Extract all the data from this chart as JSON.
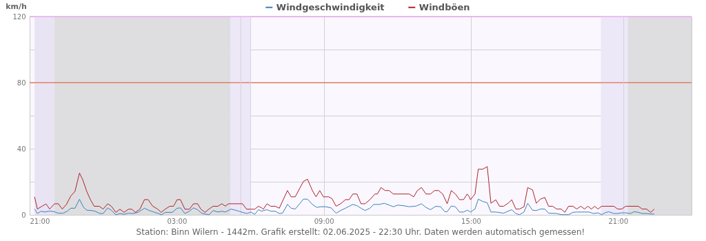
{
  "chart_data": {
    "type": "line",
    "ylabel": "km/h",
    "xlim": [
      "2025-06-01T21:00",
      "2025-06-03T00:00"
    ],
    "xticks": [
      {
        "value": "2025-06-01T21:00",
        "label": "21:00"
      },
      {
        "value": "2025-06-02T03:00",
        "label": "03:00"
      },
      {
        "value": "2025-06-02T09:00",
        "label": "09:00"
      },
      {
        "value": "2025-06-02T15:00",
        "label": "15:00"
      },
      {
        "value": "2025-06-02T21:00",
        "label": "21:00"
      }
    ],
    "ylim": [
      0,
      120
    ],
    "yticks": [
      0,
      {
        "value": 20,
        "label": null
      },
      40,
      {
        "value": 60,
        "label": null
      },
      80,
      {
        "value": 100,
        "label": null
      },
      120
    ],
    "grid": true,
    "legend": "top",
    "series": [
      {
        "name": "Windgeschwindigkeit",
        "color": "#3a7fc0",
        "x": [
          "2025-06-01T21:12",
          "2025-06-01T21:19",
          "2025-06-01T21:28",
          "2025-06-01T21:37",
          "2025-06-01T21:47",
          "2025-06-01T21:59",
          "2025-06-01T22:10",
          "2025-06-01T22:22",
          "2025-06-01T22:32",
          "2025-06-01T22:41",
          "2025-06-01T22:51",
          "2025-06-01T23:02",
          "2025-06-01T23:12",
          "2025-06-01T23:20",
          "2025-06-01T23:32",
          "2025-06-01T23:40",
          "2025-06-01T23:52",
          "2025-06-02T00:00",
          "2025-06-02T00:11",
          "2025-06-02T00:20",
          "2025-06-02T00:31",
          "2025-06-02T00:41",
          "2025-06-02T00:51",
          "2025-06-02T01:02",
          "2025-06-02T01:13",
          "2025-06-02T01:25",
          "2025-06-02T01:41",
          "2025-06-02T01:53",
          "2025-06-02T02:04",
          "2025-06-02T02:15",
          "2025-06-02T02:23",
          "2025-06-02T02:32",
          "2025-06-02T02:49",
          "2025-06-02T03:01",
          "2025-06-02T03:09",
          "2025-06-02T03:20",
          "2025-06-02T03:31",
          "2025-06-02T03:41",
          "2025-06-02T03:51",
          "2025-06-02T04:02",
          "2025-06-02T04:14",
          "2025-06-02T04:19",
          "2025-06-02T04:29",
          "2025-06-02T04:41",
          "2025-06-02T04:50",
          "2025-06-02T04:59",
          "2025-06-02T05:13",
          "2025-06-02T05:24",
          "2025-06-02T05:32",
          "2025-06-02T05:41",
          "2025-06-02T05:52",
          "2025-06-02T06:01",
          "2025-06-02T06:11",
          "2025-06-02T06:20",
          "2025-06-02T06:28",
          "2025-06-02T06:32",
          "2025-06-02T06:41",
          "2025-06-02T06:50",
          "2025-06-02T07:01",
          "2025-06-02T07:11",
          "2025-06-02T07:19",
          "2025-06-02T07:31",
          "2025-06-02T07:40",
          "2025-06-02T07:50",
          "2025-06-02T08:02",
          "2025-06-02T08:10",
          "2025-06-02T08:20",
          "2025-06-02T08:32",
          "2025-06-02T08:43",
          "2025-06-02T08:52",
          "2025-06-02T09:04",
          "2025-06-02T09:18",
          "2025-06-02T09:30",
          "2025-06-02T09:41",
          "2025-06-02T09:53",
          "2025-06-02T10:11",
          "2025-06-02T10:21",
          "2025-06-02T10:31",
          "2025-06-02T10:41",
          "2025-06-02T10:53",
          "2025-06-02T11:02",
          "2025-06-02T11:16",
          "2025-06-02T11:28",
          "2025-06-02T11:40",
          "2025-06-02T11:50",
          "2025-06-02T12:01",
          "2025-06-02T12:13",
          "2025-06-02T12:29",
          "2025-06-02T12:46",
          "2025-06-02T12:59",
          "2025-06-02T13:10",
          "2025-06-02T13:21",
          "2025-06-02T13:34",
          "2025-06-02T13:46",
          "2025-06-02T13:56",
          "2025-06-02T14:02",
          "2025-06-02T14:12",
          "2025-06-02T14:22",
          "2025-06-02T14:32",
          "2025-06-02T14:42",
          "2025-06-02T14:51",
          "2025-06-02T14:56",
          "2025-06-02T14:59",
          "2025-06-02T15:10",
          "2025-06-02T15:18",
          "2025-06-02T15:29",
          "2025-06-02T15:40",
          "2025-06-02T15:49",
          "2025-06-02T16:01",
          "2025-06-02T16:20",
          "2025-06-02T16:31",
          "2025-06-02T16:40",
          "2025-06-02T16:50",
          "2025-06-02T16:59",
          "2025-06-02T17:10",
          "2025-06-02T17:19",
          "2025-06-02T17:31",
          "2025-06-02T17:40",
          "2025-06-02T17:50",
          "2025-06-02T18:01",
          "2025-06-02T18:10",
          "2025-06-02T18:30",
          "2025-06-02T18:41",
          "2025-06-02T18:59",
          "2025-06-02T19:10",
          "2025-06-02T19:19",
          "2025-06-02T19:49",
          "2025-06-02T20:00",
          "2025-06-02T20:11",
          "2025-06-02T20:20",
          "2025-06-02T20:28",
          "2025-06-02T20:37",
          "2025-06-02T20:50",
          "2025-06-02T20:59",
          "2025-06-02T21:09",
          "2025-06-02T21:19",
          "2025-06-02T21:30",
          "2025-06-02T21:40",
          "2025-06-02T21:50",
          "2025-06-02T21:59",
          "2025-06-02T22:10",
          "2025-06-02T22:20",
          "2025-06-02T22:29"
        ],
        "values": [
          3.5,
          0.8,
          2.2,
          1.7,
          2.2,
          2.0,
          1.0,
          1.0,
          2.2,
          4.0,
          4.0,
          9.4,
          4.5,
          2.8,
          2.6,
          2.2,
          0.8,
          0.8,
          4.2,
          2.8,
          0.0,
          0.8,
          0.3,
          1.0,
          0.8,
          1.5,
          4.0,
          2.6,
          1.7,
          0.8,
          0.0,
          1.5,
          1.5,
          4.0,
          4.2,
          0.8,
          2.2,
          4.2,
          3.1,
          0.8,
          0.3,
          0.0,
          2.6,
          1.7,
          2.2,
          1.7,
          3.5,
          2.8,
          2.2,
          1.5,
          0.8,
          1.7,
          0.3,
          3.1,
          2.2,
          2.6,
          3.1,
          2.2,
          2.2,
          0.8,
          1.0,
          6.3,
          4.0,
          3.5,
          7.0,
          9.5,
          9.5,
          6.3,
          4.5,
          4.9,
          4.9,
          4.2,
          1.0,
          2.6,
          4.0,
          6.3,
          5.6,
          4.0,
          2.6,
          4.0,
          6.3,
          6.3,
          7.0,
          5.9,
          4.9,
          5.9,
          5.6,
          4.9,
          5.3,
          6.7,
          4.5,
          3.1,
          5.2,
          4.9,
          1.9,
          1.9,
          5.3,
          4.9,
          1.7,
          1.7,
          2.8,
          2.2,
          1.7,
          3.5,
          9.5,
          8.1,
          7.3,
          1.7,
          1.7,
          1.0,
          2.2,
          3.1,
          0.8,
          0.1,
          1.7,
          7.0,
          2.8,
          2.6,
          3.5,
          3.5,
          1.0,
          0.8,
          0.1,
          0.1,
          1.5,
          1.7,
          1.7,
          0.8,
          1.2,
          0.1,
          1.2,
          1.9,
          0.8,
          0.8,
          1.2,
          1.2,
          0.8,
          1.9,
          1.5,
          0.8,
          0.8,
          0.5,
          0.5
        ]
      },
      {
        "name": "Windböen",
        "color": "#b0202a",
        "x": [
          "2025-06-01T21:12",
          "2025-06-01T21:19",
          "2025-06-01T21:31",
          "2025-06-01T21:40",
          "2025-06-01T21:49",
          "2025-06-01T22:01",
          "2025-06-01T22:10",
          "2025-06-01T22:20",
          "2025-06-01T22:30",
          "2025-06-01T22:41",
          "2025-06-01T22:51",
          "2025-06-01T23:02",
          "2025-06-01T23:10",
          "2025-06-01T23:20",
          "2025-06-01T23:29",
          "2025-06-01T23:38",
          "2025-06-01T23:50",
          "2025-06-02T00:00",
          "2025-06-02T00:11",
          "2025-06-02T00:20",
          "2025-06-02T00:31",
          "2025-06-02T00:41",
          "2025-06-02T00:51",
          "2025-06-02T01:02",
          "2025-06-02T01:10",
          "2025-06-02T01:19",
          "2025-06-02T01:30",
          "2025-06-02T01:41",
          "2025-06-02T01:50",
          "2025-06-02T02:01",
          "2025-06-02T02:13",
          "2025-06-02T02:22",
          "2025-06-02T02:32",
          "2025-06-02T02:43",
          "2025-06-02T02:52",
          "2025-06-02T03:01",
          "2025-06-02T03:09",
          "2025-06-02T03:20",
          "2025-06-02T03:31",
          "2025-06-02T03:41",
          "2025-06-02T03:51",
          "2025-06-02T03:59",
          "2025-06-02T04:09",
          "2025-06-02T04:19",
          "2025-06-02T04:29",
          "2025-06-02T04:41",
          "2025-06-02T04:50",
          "2025-06-02T04:59",
          "2025-06-02T05:07",
          "2025-06-02T05:19",
          "2025-06-02T05:30",
          "2025-06-02T05:41",
          "2025-06-02T05:51",
          "2025-06-02T06:01",
          "2025-06-02T06:11",
          "2025-06-02T06:20",
          "2025-06-02T06:28",
          "2025-06-02T06:32",
          "2025-06-02T06:41",
          "2025-06-02T06:50",
          "2025-06-02T07:01",
          "2025-06-02T07:11",
          "2025-06-02T07:31",
          "2025-06-02T07:40",
          "2025-06-02T07:50",
          "2025-06-02T08:10",
          "2025-06-02T08:20",
          "2025-06-02T08:32",
          "2025-06-02T08:41",
          "2025-06-02T08:50",
          "2025-06-02T08:59",
          "2025-06-02T09:12",
          "2025-06-02T09:20",
          "2025-06-02T09:30",
          "2025-06-02T09:41",
          "2025-06-02T09:53",
          "2025-06-02T10:02",
          "2025-06-02T10:11",
          "2025-06-02T10:21",
          "2025-06-02T10:31",
          "2025-06-02T10:41",
          "2025-06-02T10:53",
          "2025-06-02T11:05",
          "2025-06-02T11:11",
          "2025-06-02T11:20",
          "2025-06-02T11:30",
          "2025-06-02T11:40",
          "2025-06-02T11:50",
          "2025-06-02T12:01",
          "2025-06-02T12:13",
          "2025-06-02T12:29",
          "2025-06-02T12:40",
          "2025-06-02T12:49",
          "2025-06-02T12:59",
          "2025-06-02T13:10",
          "2025-06-02T13:21",
          "2025-06-02T13:31",
          "2025-06-02T13:41",
          "2025-06-02T13:51",
          "2025-06-02T14:02",
          "2025-06-02T14:12",
          "2025-06-02T14:22",
          "2025-06-02T14:32",
          "2025-06-02T14:42",
          "2025-06-02T14:51",
          "2025-06-02T14:56",
          "2025-06-02T14:59",
          "2025-06-02T15:10",
          "2025-06-02T15:18",
          "2025-06-02T15:29",
          "2025-06-02T15:40",
          "2025-06-02T15:49",
          "2025-06-02T16:01",
          "2025-06-02T16:10",
          "2025-06-02T16:20",
          "2025-06-02T16:31",
          "2025-06-02T16:40",
          "2025-06-02T16:50",
          "2025-06-02T16:59",
          "2025-06-02T17:10",
          "2025-06-02T17:19",
          "2025-06-02T17:31",
          "2025-06-02T17:40",
          "2025-06-02T17:50",
          "2025-06-02T18:01",
          "2025-06-02T18:10",
          "2025-06-02T18:20",
          "2025-06-02T18:30",
          "2025-06-02T18:41",
          "2025-06-02T18:50",
          "2025-06-02T18:59",
          "2025-06-02T19:10",
          "2025-06-02T19:19",
          "2025-06-02T19:29",
          "2025-06-02T19:38",
          "2025-06-02T19:46",
          "2025-06-02T19:55",
          "2025-06-02T20:03",
          "2025-06-02T20:11",
          "2025-06-02T20:20",
          "2025-06-02T20:28",
          "2025-06-02T20:50",
          "2025-06-02T20:59",
          "2025-06-02T21:09",
          "2025-06-02T21:19",
          "2025-06-02T21:50",
          "2025-06-02T21:59",
          "2025-06-02T22:10",
          "2025-06-02T22:20",
          "2025-06-02T22:29"
        ],
        "values": [
          10.9,
          3.5,
          5.3,
          6.6,
          3.5,
          6.7,
          6.7,
          3.5,
          6.3,
          11.5,
          14.2,
          25.3,
          21.2,
          14.0,
          9.1,
          5.2,
          5.2,
          3.5,
          6.7,
          5.2,
          1.5,
          3.4,
          1.5,
          3.4,
          3.4,
          1.5,
          3.5,
          9.2,
          9.2,
          5.3,
          3.5,
          1.5,
          3.5,
          5.2,
          5.2,
          9.2,
          9.2,
          3.4,
          3.4,
          6.7,
          6.7,
          3.5,
          1.5,
          3.5,
          5.2,
          5.2,
          6.7,
          5.3,
          6.7,
          6.7,
          6.7,
          6.7,
          3.4,
          3.4,
          3.4,
          5.2,
          4.2,
          3.4,
          6.7,
          5.2,
          5.2,
          4.0,
          14.7,
          10.9,
          10.9,
          20.2,
          21.6,
          14.7,
          10.9,
          14.7,
          10.9,
          10.9,
          9.8,
          5.2,
          6.7,
          9.2,
          9.2,
          12.6,
          12.6,
          6.7,
          6.7,
          9.2,
          12.6,
          12.6,
          16.5,
          14.7,
          14.7,
          12.6,
          12.6,
          12.6,
          12.6,
          10.9,
          14.7,
          16.5,
          12.6,
          12.6,
          14.7,
          14.7,
          12.6,
          6.7,
          14.7,
          12.6,
          9.2,
          9.2,
          12.6,
          10.9,
          9.1,
          12.6,
          27.6,
          27.6,
          29.2,
          7.0,
          9.1,
          5.2,
          5.2,
          7.0,
          9.1,
          3.5,
          3.5,
          4.9,
          16.5,
          15.1,
          7.0,
          9.5,
          10.5,
          5.2,
          5.2,
          3.5,
          3.5,
          1.5,
          5.2,
          5.2,
          3.5,
          5.2,
          3.5,
          5.2,
          3.5,
          5.2,
          3.5,
          5.2,
          5.2,
          5.2,
          3.5,
          3.5,
          5.2,
          5.2,
          3.5,
          3.5,
          1.5,
          3.5
        ]
      }
    ],
    "bands": [
      {
        "axis": "x",
        "from": "2025-06-01T21:12",
        "to": "2025-06-01T22:00",
        "color": "#e8e4f4"
      },
      {
        "axis": "x",
        "from": "2025-06-01T22:00",
        "to": "2025-06-02T05:12",
        "color": "#dedee0"
      },
      {
        "axis": "x",
        "from": "2025-06-02T05:12",
        "to": "2025-06-02T06:00",
        "color": "#ece8f8"
      },
      {
        "axis": "x",
        "from": "2025-06-02T20:18",
        "to": "2025-06-02T21:24",
        "color": "#ece8f8"
      },
      {
        "axis": "x",
        "from": "2025-06-02T21:24",
        "to": "2025-06-03T00:00",
        "color": "#dedee0"
      }
    ],
    "ref_lines": [
      {
        "axis": "y",
        "value": 80,
        "color": "#e05020"
      },
      {
        "axis": "y",
        "value": 120,
        "color": "#ee82ee"
      },
      {
        "axis": "x",
        "value": "2025-06-02T05:37",
        "color": "#d4d0dc"
      },
      {
        "axis": "x",
        "value": "2025-06-02T06:01",
        "color": "#d4d0dc"
      },
      {
        "axis": "x",
        "value": "2025-06-02T21:14",
        "color": "#d4d0dc"
      }
    ],
    "annotations": [
      "Station: Binn Wilern - 1442m. Grafik erstellt: 02.06.2025 - 22:30 Uhr. Daten werden automatisch gemessen!"
    ]
  }
}
